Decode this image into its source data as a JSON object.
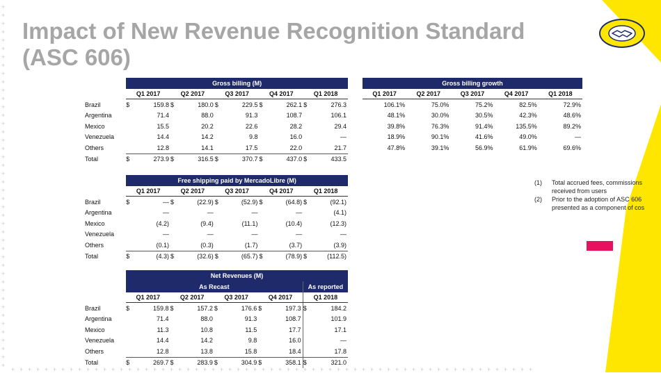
{
  "title": "Impact of New Revenue Recognition Standard (ASC 606)",
  "colors": {
    "navy": "#1f2a6b",
    "yellow": "#ffe600",
    "pink": "#e8115f",
    "title_gray": "#a6a6a6"
  },
  "logo_icon": "handshake-icon",
  "currency_symbol": "$",
  "gross_billing": {
    "title": "Gross billing (M)",
    "columns": [
      "Q1 2017",
      "Q2 2017",
      "Q3 2017",
      "Q4 2017",
      "Q1 2018"
    ],
    "rows": [
      {
        "label": "Brazil",
        "cur": true,
        "values": [
          "159.8",
          "180.0",
          "229.5",
          "262.1",
          "276.3"
        ]
      },
      {
        "label": "Argentina",
        "cur": false,
        "values": [
          "71.4",
          "88.0",
          "91.3",
          "108.7",
          "106.1"
        ]
      },
      {
        "label": "Mexico",
        "cur": false,
        "values": [
          "15.5",
          "20.2",
          "22.6",
          "28.2",
          "29.4"
        ]
      },
      {
        "label": "Venezuela",
        "cur": false,
        "values": [
          "14.4",
          "14.2",
          "9.8",
          "16.0",
          "—"
        ]
      },
      {
        "label": "Others",
        "cur": false,
        "values": [
          "12.8",
          "14.1",
          "17.5",
          "22.0",
          "21.7"
        ]
      },
      {
        "label": "Total",
        "cur": true,
        "values": [
          "273.9",
          "316.5",
          "370.7",
          "437.0",
          "433.5"
        ]
      }
    ]
  },
  "gross_billing_growth": {
    "title": "Gross billing growth",
    "columns": [
      "Q1 2017",
      "Q2 2017",
      "Q3 2017",
      "Q4 2017",
      "Q1 2018"
    ],
    "rows": [
      {
        "values": [
          "106.1%",
          "75.0%",
          "75.2%",
          "82.5%",
          "72.9%"
        ]
      },
      {
        "values": [
          "48.1%",
          "30.0%",
          "30.5%",
          "42.3%",
          "48.6%"
        ]
      },
      {
        "values": [
          "39.8%",
          "76.3%",
          "91.4%",
          "135.5%",
          "89.2%"
        ]
      },
      {
        "values": [
          "18.9%",
          "90.1%",
          "41.6%",
          "49.0%",
          "—"
        ]
      },
      {
        "values": [
          "47.8%",
          "39.1%",
          "56.9%",
          "61.9%",
          "69.6%"
        ]
      }
    ]
  },
  "free_shipping": {
    "title": "Free shipping paid by MercadoLibre (M)",
    "columns": [
      "Q1 2017",
      "Q2 2017",
      "Q3 2017",
      "Q4 2017",
      "Q1 2018"
    ],
    "rows": [
      {
        "label": "Brazil",
        "cur": true,
        "values": [
          "—",
          "(22.9)",
          "(52.9)",
          "(64.8)",
          "(92.1)"
        ]
      },
      {
        "label": "Argentina",
        "cur": false,
        "values": [
          "—",
          "—",
          "—",
          "—",
          "(4.1)"
        ]
      },
      {
        "label": "Mexico",
        "cur": false,
        "values": [
          "(4.2)",
          "(9.4)",
          "(11.1)",
          "(10.4)",
          "(12.3)"
        ]
      },
      {
        "label": "Venezuela",
        "cur": false,
        "values": [
          "—",
          "—",
          "—",
          "—",
          "—"
        ]
      },
      {
        "label": "Others",
        "cur": false,
        "values": [
          "(0.1)",
          "(0.3)",
          "(1.7)",
          "(3.7)",
          "(3.9)"
        ]
      },
      {
        "label": "Total",
        "cur": true,
        "values": [
          "(4.3)",
          "(32.6)",
          "(65.7)",
          "(78.9)",
          "(112.5)"
        ]
      }
    ]
  },
  "net_revenues": {
    "title": "Net Revenues (M)",
    "group_recast": "As Recast",
    "group_reported": "As reported",
    "columns": [
      "Q1 2017",
      "Q2 2017",
      "Q3 2017",
      "Q4 2017",
      "Q1 2018"
    ],
    "rows": [
      {
        "label": "Brazil",
        "cur": true,
        "values": [
          "159.8",
          "157.2",
          "176.6",
          "197.3",
          "184.2"
        ]
      },
      {
        "label": "Argentina",
        "cur": false,
        "values": [
          "71.4",
          "88.0",
          "91.3",
          "108.7",
          "101.9"
        ]
      },
      {
        "label": "Mexico",
        "cur": false,
        "values": [
          "11.3",
          "10.8",
          "11.5",
          "17.7",
          "17.1"
        ]
      },
      {
        "label": "Venezuela",
        "cur": false,
        "values": [
          "14.4",
          "14.2",
          "9.8",
          "16.0",
          "—"
        ]
      },
      {
        "label": "Others",
        "cur": false,
        "values": [
          "12.8",
          "13.8",
          "15.8",
          "18.4",
          "17.8"
        ]
      },
      {
        "label": "Total",
        "cur": true,
        "values": [
          "269.7",
          "283.9",
          "304.9",
          "358.1",
          "321.0"
        ]
      }
    ]
  },
  "notes": [
    {
      "num": "(1)",
      "lines": [
        "Total accrued fees, commissions",
        "received from users"
      ]
    },
    {
      "num": "(2)",
      "lines": [
        "Prior to the adoption of ASC 606",
        "presented as a component of cos"
      ]
    }
  ]
}
